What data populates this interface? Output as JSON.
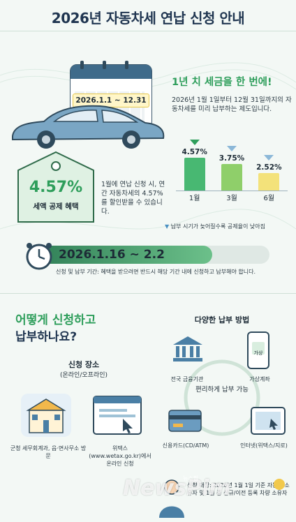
{
  "title": "2026년 자동차세 연납 신청 안내",
  "calendar_period": "2026.1.1 ~ 12.31",
  "discount": {
    "rate": "4.57%",
    "label": "세액 공제 혜택",
    "desc": "1월에 연납 신청 시, 연간 자동차세의 4.57%를 할인받을 수 있습니다."
  },
  "headline": "1년 치 세금을 한 번에!",
  "intro": "2026년 1월 1일부터 12월 31일까지의 자동차세를 미리 납부하는 제도입니다.",
  "chart_data": {
    "type": "bar",
    "categories": [
      "1월",
      "3월",
      "6월"
    ],
    "values": [
      4.57,
      3.75,
      2.52
    ],
    "value_labels": [
      "4.57%",
      "3.75%",
      "2.52%"
    ],
    "colors": [
      "#48b872",
      "#8fcf6a",
      "#f3e27a"
    ],
    "ylim": [
      0,
      5
    ]
  },
  "chart_note": "납부 시기가 늦어질수록 공제율이 낮아짐",
  "period": {
    "dates": "2026.1.16 ~ 2.2",
    "note": "신청 및 납부 기간: 혜택을 받으려면 반드시 해당 기간 내에 신청하고 납부해야 합니다."
  },
  "how": {
    "title_line1": "어떻게 신청하고",
    "title_line2": "납부하나요?",
    "place_title": "신청 장소",
    "place_sub": "(온라인/오프라인)",
    "offline_label": "군청 세무회계과, 읍·면사무소 방문",
    "online_label": "위택스(www.wetax.go.kr)에서 온라인 신청"
  },
  "payment": {
    "title": "다양한 납부 방법",
    "bank": "전국 금융기관",
    "virtual": "가상계좌",
    "center": "편리하게 납부 가능",
    "card": "신용카드(CD/ATM)",
    "internet": "인터넷(위택스/지로)",
    "phone_label": "가상"
  },
  "target": "신청 대상: 2026년 1월 1일 기준 자동차 소유자 및 1월 중 신규/이전 등록 차량 소유자",
  "watermark": "NewsPim",
  "watermark_sub": "뉴스핌"
}
